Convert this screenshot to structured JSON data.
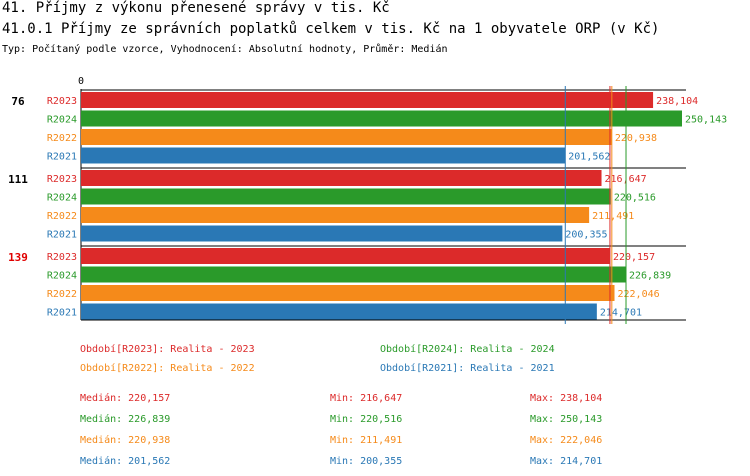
{
  "header": {
    "title": "41. Příjmy z výkonu přenesené správy v tis. Kč",
    "subtitle": "41.0.1 Příjmy ze správních poplatků celkem v tis. Kč na 1 obyvatele ORP (v Kč)",
    "info": "Typ: Počítaný podle vzorce, Vyhodnocení: Absolutní hodnoty, Průměr: Medián"
  },
  "chart_data": {
    "type": "bar",
    "orientation": "horizontal",
    "x_axis_zero_label": "0",
    "xlim": [
      0,
      250143
    ],
    "colors": {
      "R2023": "#dc2a2a",
      "R2024": "#2a9a2a",
      "R2022": "#f58a1a",
      "R2021": "#2a78b5"
    },
    "groups": [
      {
        "label": "76",
        "highlight": false,
        "bars": [
          {
            "series": "R2023",
            "value": 238104,
            "value_label": "238,104"
          },
          {
            "series": "R2024",
            "value": 250143,
            "value_label": "250,143"
          },
          {
            "series": "R2022",
            "value": 220938,
            "value_label": "220,938"
          },
          {
            "series": "R2021",
            "value": 201562,
            "value_label": "201,562"
          }
        ]
      },
      {
        "label": "111",
        "highlight": false,
        "bars": [
          {
            "series": "R2023",
            "value": 216647,
            "value_label": "216,647"
          },
          {
            "series": "R2024",
            "value": 220516,
            "value_label": "220,516"
          },
          {
            "series": "R2022",
            "value": 211491,
            "value_label": "211,491"
          },
          {
            "series": "R2021",
            "value": 200355,
            "value_label": "200,355"
          }
        ]
      },
      {
        "label": "139",
        "highlight": true,
        "bars": [
          {
            "series": "R2023",
            "value": 220157,
            "value_label": "220,157"
          },
          {
            "series": "R2024",
            "value": 226839,
            "value_label": "226,839"
          },
          {
            "series": "R2022",
            "value": 222046,
            "value_label": "222,046"
          },
          {
            "series": "R2021",
            "value": 214701,
            "value_label": "214,701"
          }
        ]
      }
    ],
    "median_lines": [
      {
        "series": "R2023",
        "value": 220157
      },
      {
        "series": "R2024",
        "value": 226839
      },
      {
        "series": "R2022",
        "value": 220938
      },
      {
        "series": "R2021",
        "value": 201562
      }
    ],
    "legend": [
      {
        "series": "R2023",
        "text": "Období[R2023]: Realita - 2023"
      },
      {
        "series": "R2024",
        "text": "Období[R2024]: Realita - 2024"
      },
      {
        "series": "R2022",
        "text": "Období[R2022]: Realita - 2022"
      },
      {
        "series": "R2021",
        "text": "Období[R2021]: Realita - 2021"
      }
    ],
    "stats": [
      {
        "series": "R2023",
        "median": "Medián: 220,157",
        "min": "Min: 216,647",
        "max": "Max: 238,104"
      },
      {
        "series": "R2024",
        "median": "Medián: 226,839",
        "min": "Min: 220,516",
        "max": "Max: 250,143"
      },
      {
        "series": "R2022",
        "median": "Medián: 220,938",
        "min": "Min: 211,491",
        "max": "Max: 222,046"
      },
      {
        "series": "R2021",
        "median": "Medián: 201,562",
        "min": "Min: 200,355",
        "max": "Max: 214,701"
      }
    ]
  }
}
